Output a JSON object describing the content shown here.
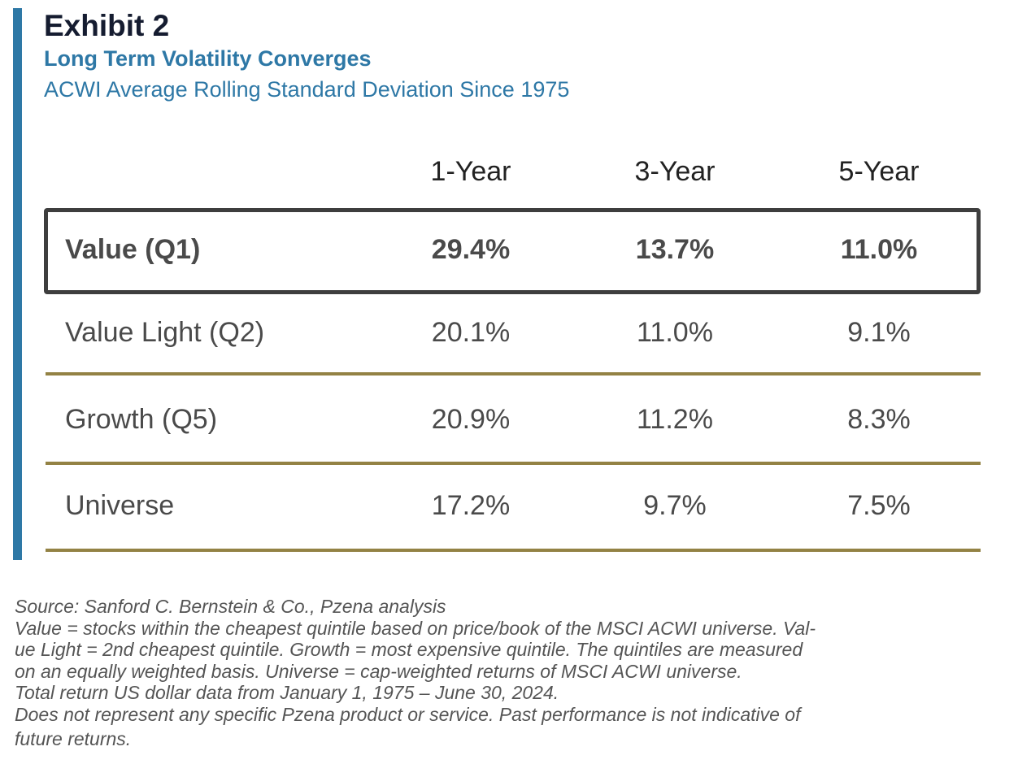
{
  "header": {
    "exhibit": "Exhibit 2",
    "title": "Long Term Volatility Converges",
    "subtitle": "ACWI Average Rolling Standard Deviation Since 1975"
  },
  "colors": {
    "accent": "#2e78a6",
    "divider": "#938244",
    "highlight_border": "#3e3e3e"
  },
  "chart_data": {
    "type": "table",
    "title": "Long Term Volatility Converges",
    "subtitle": "ACWI Average Rolling Standard Deviation Since 1975",
    "columns": [
      "1-Year",
      "3-Year",
      "5-Year"
    ],
    "rows": [
      {
        "label": "Value (Q1)",
        "values": [
          "29.4%",
          "13.7%",
          "11.0%"
        ],
        "highlighted": true
      },
      {
        "label": "Value Light (Q2)",
        "values": [
          "20.1%",
          "11.0%",
          "9.1%"
        ],
        "highlighted": false
      },
      {
        "label": "Growth (Q5)",
        "values": [
          "20.9%",
          "11.2%",
          "8.3%"
        ],
        "highlighted": false
      },
      {
        "label": "Universe",
        "values": [
          "17.2%",
          "9.7%",
          "7.5%"
        ],
        "highlighted": false
      }
    ]
  },
  "notes": [
    "Source: Sanford C. Bernstein & Co., Pzena analysis",
    "Value = stocks within the cheapest quintile based on price/book of the MSCI ACWI universe. Val-",
    "ue Light = 2nd cheapest quintile. Growth = most expensive quintile. The quintiles are measured",
    "on an equally weighted basis. Universe = cap-weighted returns of MSCI ACWI universe.",
    "Total return US dollar data from January 1, 1975 – June 30, 2024.",
    "Does not represent any specific Pzena product or service. Past performance is not indicative of",
    "future returns."
  ]
}
